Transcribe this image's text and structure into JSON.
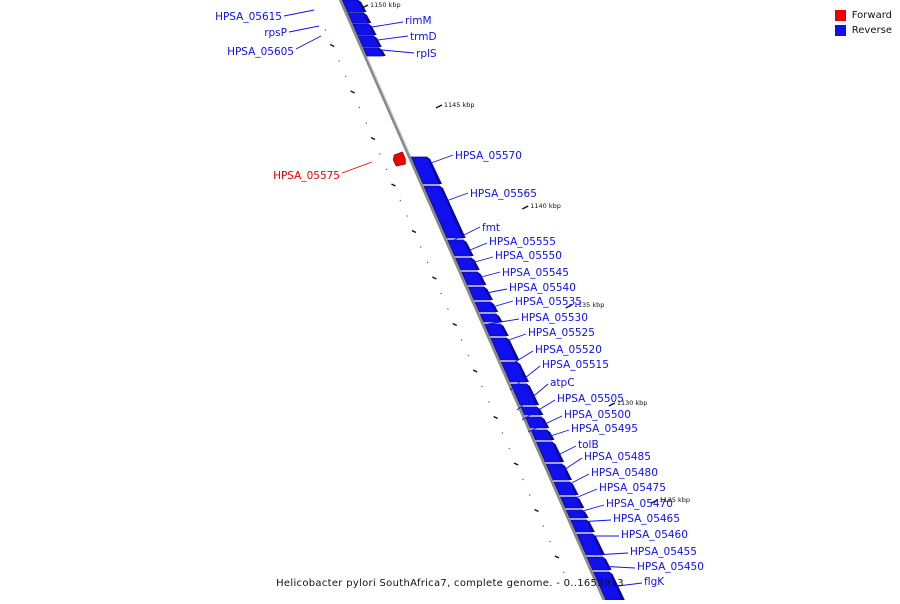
{
  "caption": "Helicobacter pylori SouthAfrica7, complete genome. - 0..1653913",
  "legend": [
    {
      "label": "Forward",
      "color": "#ee0000"
    },
    {
      "label": "Reverse",
      "color": "#1010ee"
    }
  ],
  "colors": {
    "forward": "#ee0000",
    "reverse": "#1010ee",
    "backbone": "#888888"
  },
  "scale_ticks": [
    "1150 kbp",
    "1145 kbp",
    "1140 kbp",
    "1135 kbp",
    "1130 kbp",
    "1125 kbp"
  ],
  "genes": [
    {
      "name": "HPSA_05615",
      "strand": "reverse"
    },
    {
      "name": "rpsP",
      "strand": "reverse"
    },
    {
      "name": "HPSA_05605",
      "strand": "reverse"
    },
    {
      "name": "rimM",
      "strand": "reverse"
    },
    {
      "name": "trmD",
      "strand": "reverse"
    },
    {
      "name": "rplS",
      "strand": "reverse"
    },
    {
      "name": "HPSA_05575",
      "strand": "forward"
    },
    {
      "name": "HPSA_05570",
      "strand": "reverse"
    },
    {
      "name": "HPSA_05565",
      "strand": "reverse"
    },
    {
      "name": "fmt",
      "strand": "reverse"
    },
    {
      "name": "HPSA_05555",
      "strand": "reverse"
    },
    {
      "name": "HPSA_05550",
      "strand": "reverse"
    },
    {
      "name": "HPSA_05545",
      "strand": "reverse"
    },
    {
      "name": "HPSA_05540",
      "strand": "reverse"
    },
    {
      "name": "HPSA_05535",
      "strand": "reverse"
    },
    {
      "name": "HPSA_05530",
      "strand": "reverse"
    },
    {
      "name": "HPSA_05525",
      "strand": "reverse"
    },
    {
      "name": "HPSA_05520",
      "strand": "reverse"
    },
    {
      "name": "HPSA_05515",
      "strand": "reverse"
    },
    {
      "name": "atpC",
      "strand": "reverse"
    },
    {
      "name": "HPSA_05505",
      "strand": "reverse"
    },
    {
      "name": "HPSA_05500",
      "strand": "reverse"
    },
    {
      "name": "HPSA_05495",
      "strand": "reverse"
    },
    {
      "name": "tolB",
      "strand": "reverse"
    },
    {
      "name": "HPSA_05485",
      "strand": "reverse"
    },
    {
      "name": "HPSA_05480",
      "strand": "reverse"
    },
    {
      "name": "HPSA_05475",
      "strand": "reverse"
    },
    {
      "name": "HPSA_05470",
      "strand": "reverse"
    },
    {
      "name": "HPSA_05465",
      "strand": "reverse"
    },
    {
      "name": "HPSA_05460",
      "strand": "reverse"
    },
    {
      "name": "HPSA_05455",
      "strand": "reverse"
    },
    {
      "name": "HPSA_05450",
      "strand": "reverse"
    },
    {
      "name": "flgK",
      "strand": "reverse"
    }
  ]
}
